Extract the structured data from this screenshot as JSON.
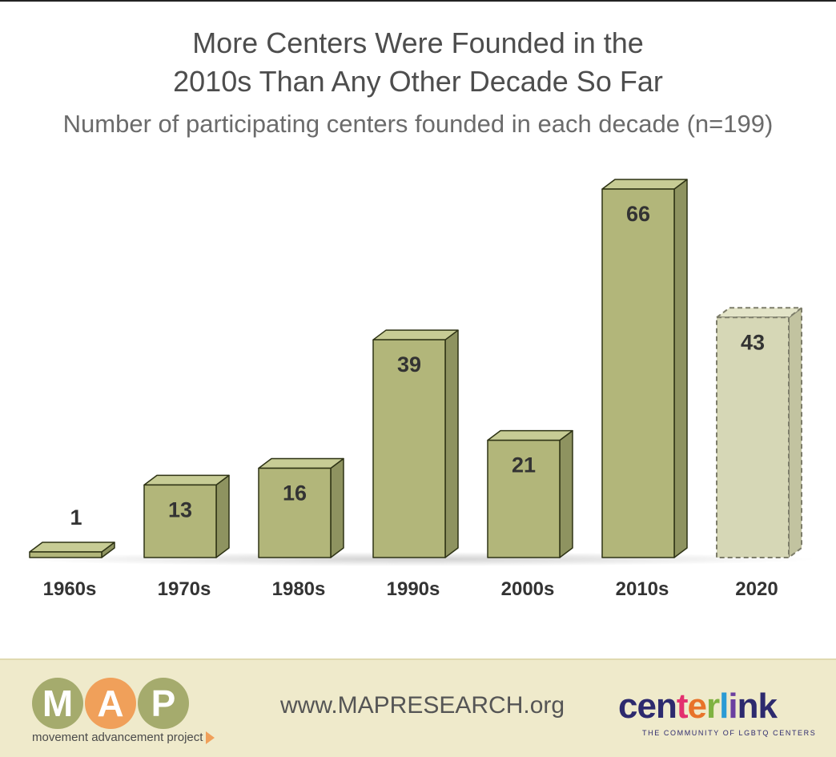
{
  "chart_data": {
    "type": "bar",
    "title_lines": [
      "More Centers Were Founded in the",
      "2010s Than Any Other Decade So Far"
    ],
    "subtitle": "Number of participating centers founded in each decade (n=199)",
    "categories": [
      "1960s",
      "1970s",
      "1980s",
      "1990s",
      "2000s",
      "2010s",
      "2020"
    ],
    "values": [
      1,
      13,
      16,
      39,
      21,
      66,
      43
    ],
    "projected": [
      false,
      false,
      false,
      false,
      false,
      false,
      true
    ],
    "ylim": [
      0,
      66
    ],
    "grid": false,
    "colors": {
      "bar_front": "#b2b67a",
      "bar_top": "#c7cc95",
      "bar_side": "#8e9360",
      "bar_outline": "#2e3315",
      "projected_front": "#d6d7b6",
      "projected_top": "#e3e4c8",
      "projected_side": "#c2c3a0",
      "projected_outline": "#7d7d6a",
      "label": "#333333"
    }
  },
  "footer": {
    "map_letters": [
      "M",
      "A",
      "P"
    ],
    "map_colors": [
      "#a5ab6d",
      "#f0a05a",
      "#a5ab6d"
    ],
    "map_tagline": "movement advancement project",
    "url": "www.MAPRESEARCH.org",
    "centerlink_name": "centerlink",
    "centerlink_tagline": "THE COMMUNITY OF LGBTQ CENTERS",
    "centerlink_colors": [
      "#2d2a6e",
      "#2d2a6e",
      "#2d2a6e",
      "#e3306f",
      "#e8732a",
      "#7fb241",
      "#2a9bd5",
      "#6b3fa0",
      "#2d2a6e",
      "#2d2a6e"
    ]
  }
}
